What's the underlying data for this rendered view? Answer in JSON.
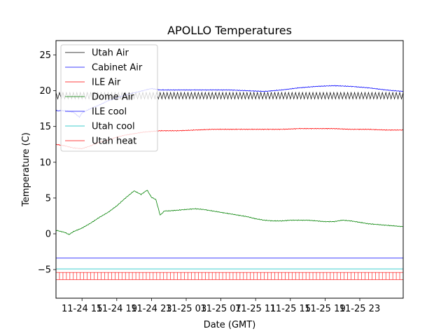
{
  "chart_data": {
    "type": "line",
    "title": "APOLLO Temperatures",
    "xlabel": "Date (GMT)",
    "ylabel": "Temperature (C)",
    "xlim": [
      0,
      40
    ],
    "ylim": [
      -9,
      27
    ],
    "x_unit": "hours since 11-24 12:00",
    "x_ticks": [
      {
        "x": 3,
        "label": "11-24 15"
      },
      {
        "x": 7,
        "label": "11-24 19"
      },
      {
        "x": 11,
        "label": "11-24 23"
      },
      {
        "x": 15,
        "label": "11-25 03"
      },
      {
        "x": 19,
        "label": "11-25 07"
      },
      {
        "x": 23,
        "label": "11-25 11"
      },
      {
        "x": 27,
        "label": "11-25 15"
      },
      {
        "x": 31,
        "label": "11-25 19"
      },
      {
        "x": 35,
        "label": "11-25 23"
      }
    ],
    "y_ticks": [
      -5,
      0,
      5,
      10,
      15,
      20,
      25
    ],
    "legend_location": "upper-left",
    "series": [
      {
        "name": "Utah Air",
        "color": "#000000",
        "style": "oscillating",
        "x": [
          0,
          40
        ],
        "y": [
          19.3,
          19.3
        ],
        "oscillation_amplitude": 0.45,
        "oscillation_period_hours": 0.4
      },
      {
        "name": "Cabinet Air",
        "color": "#0000ff",
        "x": [
          0,
          1,
          2,
          2.7,
          3,
          4,
          5,
          6,
          7,
          8,
          9,
          10,
          11,
          12,
          14,
          16,
          18,
          20,
          22,
          24,
          26,
          28,
          30,
          32,
          34,
          36,
          38,
          40
        ],
        "y": [
          17.2,
          17.2,
          17.0,
          16.3,
          16.9,
          17.5,
          18.0,
          18.6,
          19.0,
          19.4,
          19.7,
          20.0,
          20.3,
          20.1,
          20.1,
          20.1,
          20.1,
          20.1,
          20.0,
          19.9,
          20.1,
          20.4,
          20.6,
          20.7,
          20.6,
          20.4,
          20.1,
          19.9
        ]
      },
      {
        "name": "ILE Air",
        "color": "#ff0000",
        "x": [
          0,
          1,
          2,
          3,
          4,
          5,
          6,
          7,
          8,
          9,
          10,
          11,
          12,
          14,
          16,
          18,
          20,
          22,
          24,
          26,
          28,
          30,
          32,
          34,
          36,
          38,
          40
        ],
        "y": [
          12.5,
          12.3,
          12.0,
          11.9,
          12.3,
          12.8,
          13.1,
          13.5,
          13.8,
          14.0,
          14.2,
          14.3,
          14.4,
          14.4,
          14.5,
          14.6,
          14.6,
          14.6,
          14.6,
          14.6,
          14.7,
          14.7,
          14.7,
          14.6,
          14.6,
          14.5,
          14.5
        ]
      },
      {
        "name": "Dome Air",
        "color": "#008000",
        "x": [
          0,
          1,
          1.5,
          2,
          3,
          4,
          5,
          6,
          7,
          8,
          9,
          9.8,
          10.5,
          11,
          11.5,
          12,
          12.5,
          13,
          14,
          15,
          16,
          17,
          18,
          19,
          20,
          21,
          22,
          23,
          24,
          25,
          26,
          27,
          28,
          29,
          30,
          31,
          32,
          33,
          34,
          35,
          36,
          37,
          38,
          39,
          40
        ],
        "y": [
          0.5,
          0.2,
          -0.1,
          0.3,
          0.8,
          1.5,
          2.3,
          3.0,
          3.9,
          5.0,
          6.0,
          5.5,
          6.1,
          5.1,
          4.8,
          2.6,
          3.2,
          3.2,
          3.3,
          3.4,
          3.5,
          3.4,
          3.2,
          3.0,
          2.8,
          2.6,
          2.4,
          2.1,
          1.9,
          1.8,
          1.8,
          1.9,
          1.9,
          1.9,
          1.8,
          1.7,
          1.7,
          1.9,
          1.8,
          1.6,
          1.4,
          1.3,
          1.2,
          1.1,
          1.0
        ]
      },
      {
        "name": "ILE cool",
        "color": "#0000ff",
        "x": [
          0,
          40
        ],
        "y": [
          -3.4,
          -3.4
        ]
      },
      {
        "name": "Utah cool",
        "color": "#00bfbf",
        "x": [
          0,
          40
        ],
        "y": [
          -4.9,
          -4.9
        ]
      },
      {
        "name": "Utah heat",
        "color": "#ff0000",
        "style": "spikes",
        "x": [
          0,
          40
        ],
        "y_low": -6.4,
        "y_high": -5.4,
        "spike_period_hours": 0.4
      }
    ]
  }
}
